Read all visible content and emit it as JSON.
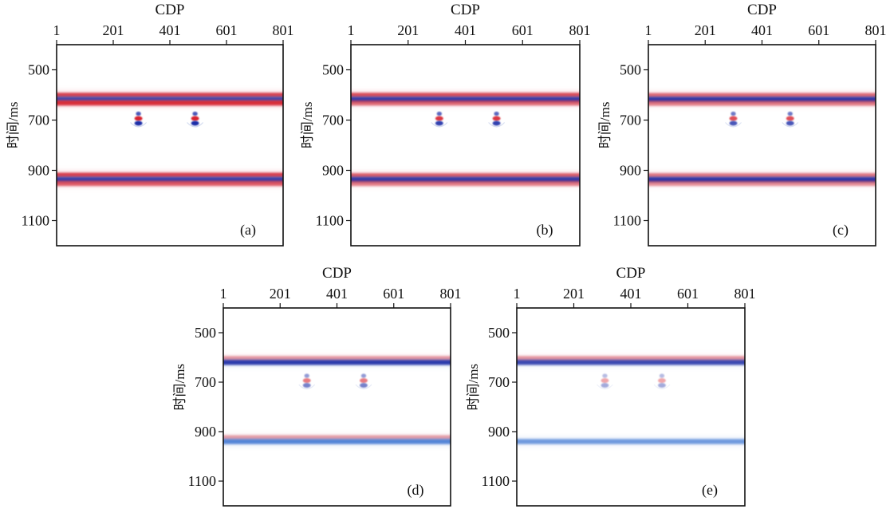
{
  "figure": {
    "panels": [
      {
        "id": "a",
        "label": "(a)"
      },
      {
        "id": "b",
        "label": "(b)"
      },
      {
        "id": "c",
        "label": "(c)"
      },
      {
        "id": "d",
        "label": "(d)"
      },
      {
        "id": "e",
        "label": "(e)"
      }
    ]
  },
  "colors": {
    "red": "#d8222f",
    "blue": "#1f2fa8",
    "light_blue": "#4a7fd6",
    "pink": "#f2a6ad",
    "frame": "#111111"
  },
  "chart_data": [
    {
      "type": "heatmap",
      "panel": "(a)",
      "title": "CDP",
      "xlabel": "CDP",
      "ylabel": "时间/ms",
      "xticks": [
        "1",
        "201",
        "401",
        "601",
        "801"
      ],
      "yticks": [
        "500",
        "700",
        "900",
        "1100"
      ],
      "xlim": [
        1,
        801
      ],
      "ylim": [
        1200,
        400
      ],
      "reflectors": [
        {
          "time": 602,
          "polarity": "red",
          "strength": 1.0
        },
        {
          "time": 618,
          "polarity": "blue",
          "strength": 1.0
        },
        {
          "time": 632,
          "polarity": "red",
          "strength": 0.9
        },
        {
          "time": 920,
          "polarity": "red",
          "strength": 1.0
        },
        {
          "time": 937,
          "polarity": "blue",
          "strength": 1.0
        },
        {
          "time": 952,
          "polarity": "red",
          "strength": 0.6
        }
      ],
      "diffractors": [
        {
          "cdp": 290,
          "time": 700,
          "strength": 1.0
        },
        {
          "cdp": 490,
          "time": 700,
          "strength": 1.0
        }
      ]
    },
    {
      "type": "heatmap",
      "panel": "(b)",
      "title": "CDP",
      "xlabel": "CDP",
      "ylabel": "时间/ms",
      "xticks": [
        "1",
        "201",
        "401",
        "601",
        "801"
      ],
      "yticks": [
        "500",
        "700",
        "900",
        "1100"
      ],
      "xlim": [
        1,
        801
      ],
      "ylim": [
        1200,
        400
      ],
      "reflectors": [
        {
          "time": 602,
          "polarity": "red",
          "strength": 0.9
        },
        {
          "time": 618,
          "polarity": "blue",
          "strength": 1.0
        },
        {
          "time": 632,
          "polarity": "red",
          "strength": 0.5
        },
        {
          "time": 922,
          "polarity": "red",
          "strength": 0.8
        },
        {
          "time": 937,
          "polarity": "blue",
          "strength": 1.0
        },
        {
          "time": 952,
          "polarity": "red",
          "strength": 0.4
        }
      ],
      "diffractors": [
        {
          "cdp": 310,
          "time": 700,
          "strength": 0.9
        },
        {
          "cdp": 510,
          "time": 700,
          "strength": 0.9
        }
      ]
    },
    {
      "type": "heatmap",
      "panel": "(c)",
      "title": "CDP",
      "xlabel": "CDP",
      "ylabel": "时间/ms",
      "xticks": [
        "1",
        "201",
        "401",
        "601",
        "801"
      ],
      "yticks": [
        "500",
        "700",
        "900",
        "1100"
      ],
      "xlim": [
        1,
        801
      ],
      "ylim": [
        1200,
        400
      ],
      "reflectors": [
        {
          "time": 603,
          "polarity": "red",
          "strength": 0.7
        },
        {
          "time": 618,
          "polarity": "blue",
          "strength": 1.0
        },
        {
          "time": 633,
          "polarity": "red",
          "strength": 0.4
        },
        {
          "time": 922,
          "polarity": "red",
          "strength": 0.6
        },
        {
          "time": 937,
          "polarity": "blue",
          "strength": 1.0
        },
        {
          "time": 952,
          "polarity": "red",
          "strength": 0.3
        }
      ],
      "diffractors": [
        {
          "cdp": 300,
          "time": 700,
          "strength": 0.8
        },
        {
          "cdp": 500,
          "time": 700,
          "strength": 0.8
        }
      ]
    },
    {
      "type": "heatmap",
      "panel": "(d)",
      "title": "CDP",
      "xlabel": "CDP",
      "ylabel": "时间/ms",
      "xticks": [
        "1",
        "201",
        "401",
        "601",
        "801"
      ],
      "yticks": [
        "500",
        "700",
        "900",
        "1100"
      ],
      "xlim": [
        1,
        801
      ],
      "ylim": [
        1200,
        400
      ],
      "reflectors": [
        {
          "time": 605,
          "polarity": "red",
          "strength": 0.35
        },
        {
          "time": 620,
          "polarity": "blue",
          "strength": 0.9
        },
        {
          "time": 925,
          "polarity": "red",
          "strength": 0.3
        },
        {
          "time": 940,
          "polarity": "lightblue",
          "strength": 0.9
        }
      ],
      "diffractors": [
        {
          "cdp": 295,
          "time": 700,
          "strength": 0.6
        },
        {
          "cdp": 495,
          "time": 700,
          "strength": 0.6
        }
      ]
    },
    {
      "type": "heatmap",
      "panel": "(e)",
      "title": "CDP",
      "xlabel": "CDP",
      "ylabel": "时间/ms",
      "xticks": [
        "1",
        "201",
        "401",
        "601",
        "801"
      ],
      "yticks": [
        "500",
        "700",
        "900",
        "1100"
      ],
      "xlim": [
        1,
        801
      ],
      "ylim": [
        1200,
        400
      ],
      "reflectors": [
        {
          "time": 605,
          "polarity": "red",
          "strength": 0.35
        },
        {
          "time": 620,
          "polarity": "blue",
          "strength": 0.8
        },
        {
          "time": 940,
          "polarity": "lightblue",
          "strength": 0.7
        }
      ],
      "diffractors": [
        {
          "cdp": 310,
          "time": 700,
          "strength": 0.4
        },
        {
          "cdp": 510,
          "time": 700,
          "strength": 0.4
        }
      ]
    }
  ]
}
